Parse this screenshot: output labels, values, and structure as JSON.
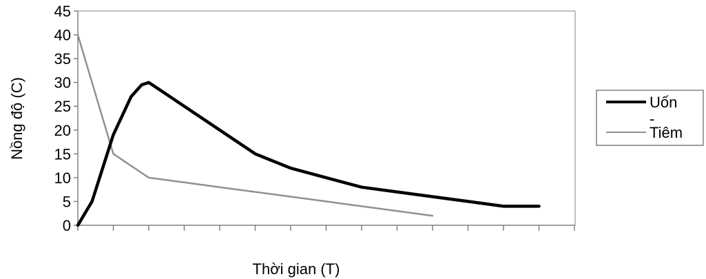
{
  "chart_data": {
    "type": "line",
    "title": "",
    "xlabel": "Thời gian (T)",
    "ylabel": "Nồng độ (C)",
    "ylim": [
      0,
      45
    ],
    "yticks": [
      "0",
      "5",
      "10",
      "15",
      "20",
      "25",
      "30",
      "35",
      "40",
      "45"
    ],
    "x_tick_count": 14,
    "grid": false,
    "legend_position": "right",
    "series": [
      {
        "name": "Uốn",
        "color": "#000000",
        "x": [
          0,
          0.4,
          1,
          1.5,
          1.8,
          2,
          2.2,
          3,
          4,
          5,
          6,
          7,
          8,
          9,
          10,
          11,
          12,
          13
        ],
        "values": [
          0,
          5,
          19,
          27,
          29.5,
          30,
          29,
          25,
          20,
          15,
          12,
          10,
          8,
          7,
          6,
          5,
          4,
          4
        ]
      },
      {
        "name": "Tiêm",
        "color": "#909090",
        "x": [
          0,
          1,
          2,
          3,
          4,
          5,
          6,
          7,
          8,
          9,
          10
        ],
        "values": [
          40,
          15,
          10,
          9,
          8,
          7,
          6,
          5,
          4,
          3,
          2
        ]
      }
    ],
    "legend_separator": "-"
  }
}
